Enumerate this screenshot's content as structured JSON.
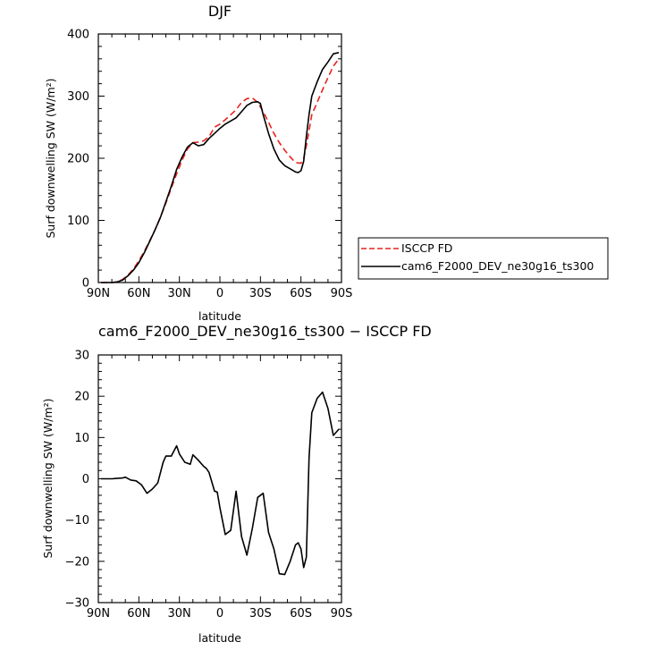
{
  "chart_data": [
    {
      "type": "line",
      "title": "DJF",
      "xlabel": "latitude",
      "ylabel": "Surf downwelling SW (W/m²)",
      "xlim": [
        -90,
        90
      ],
      "ylim": [
        0,
        400
      ],
      "x_ticks": [
        "90N",
        "60N",
        "30N",
        "0",
        "30S",
        "60S",
        "90S"
      ],
      "y_ticks": [
        "0",
        "100",
        "200",
        "300",
        "400"
      ],
      "legend": {
        "placement": "right"
      },
      "series": [
        {
          "name": "ISCCP FD",
          "color": "#e8231c",
          "dash": "dashed",
          "x": [
            -88,
            -84,
            -80,
            -76,
            -72,
            -68,
            -64,
            -60,
            -56,
            -52,
            -48,
            -44,
            -40,
            -36,
            -32,
            -28,
            -24,
            -20,
            -16,
            -12,
            -8,
            -4,
            0,
            4,
            8,
            12,
            16,
            20,
            24,
            28,
            32,
            36,
            40,
            44,
            48,
            52,
            56,
            60,
            62,
            64,
            68,
            72,
            76,
            80,
            84,
            88
          ],
          "y": [
            0,
            0,
            0,
            1,
            5,
            12,
            22,
            35,
            50,
            67,
            85,
            105,
            128,
            152,
            175,
            197,
            215,
            225,
            226,
            228,
            235,
            250,
            255,
            262,
            270,
            278,
            290,
            296,
            297,
            290,
            275,
            258,
            240,
            225,
            213,
            202,
            193,
            192,
            200,
            220,
            270,
            290,
            310,
            330,
            348,
            360
          ]
        },
        {
          "name": "cam6_F2000_DEV_ne30g16_ts300",
          "color": "#000000",
          "dash": "solid",
          "x": [
            -88,
            -84,
            -80,
            -76,
            -72,
            -68,
            -64,
            -60,
            -56,
            -52,
            -48,
            -44,
            -40,
            -36,
            -32,
            -28,
            -24,
            -20,
            -16,
            -12,
            -8,
            -4,
            -2,
            0,
            4,
            8,
            12,
            16,
            20,
            24,
            28,
            30,
            32,
            36,
            40,
            44,
            48,
            52,
            56,
            58,
            60,
            62,
            64,
            66,
            68,
            72,
            76,
            80,
            84,
            88
          ],
          "y": [
            0,
            0,
            0,
            1,
            4,
            11,
            20,
            32,
            48,
            66,
            85,
            105,
            130,
            155,
            182,
            202,
            218,
            225,
            220,
            222,
            232,
            240,
            244,
            248,
            255,
            260,
            265,
            275,
            285,
            290,
            291,
            288,
            270,
            240,
            215,
            197,
            188,
            183,
            178,
            177,
            180,
            195,
            235,
            270,
            300,
            323,
            343,
            355,
            368,
            370
          ]
        }
      ]
    },
    {
      "type": "line",
      "title": "cam6_F2000_DEV_ne30g16_ts300 − ISCCP FD",
      "xlabel": "latitude",
      "ylabel": "Surf downwelling SW (W/m²)",
      "xlim": [
        -90,
        90
      ],
      "ylim": [
        -30,
        30
      ],
      "x_ticks": [
        "90N",
        "60N",
        "30N",
        "0",
        "30S",
        "60S",
        "90S"
      ],
      "y_ticks": [
        "−30",
        "−20",
        "−10",
        "0",
        "10",
        "20",
        "30"
      ],
      "series": [
        {
          "color": "#000000",
          "dash": "solid",
          "x": [
            -88,
            -80,
            -72,
            -70,
            -66,
            -62,
            -58,
            -54,
            -50,
            -46,
            -42,
            -40,
            -36,
            -32,
            -30,
            -26,
            -22,
            -20,
            -16,
            -12,
            -10,
            -8,
            -4,
            -2,
            0,
            4,
            8,
            12,
            16,
            20,
            24,
            28,
            32,
            36,
            40,
            44,
            48,
            52,
            56,
            58,
            60,
            62,
            64,
            66,
            68,
            72,
            76,
            80,
            84,
            88
          ],
          "y": [
            0,
            0,
            0.2,
            0.4,
            -0.3,
            -0.5,
            -1.5,
            -3.5,
            -2.5,
            -1,
            4,
            5.5,
            5.5,
            8,
            6,
            4,
            3.5,
            5.8,
            4.5,
            3,
            2.5,
            1.5,
            -3,
            -3.2,
            -7,
            -13.5,
            -12.5,
            -3,
            -14,
            -18.5,
            -12,
            -4.5,
            -3.5,
            -13,
            -17,
            -23,
            -23.2,
            -20,
            -16,
            -15.5,
            -17,
            -21.5,
            -19,
            5,
            16,
            19.5,
            21,
            17,
            10.5,
            12
          ]
        }
      ]
    }
  ]
}
